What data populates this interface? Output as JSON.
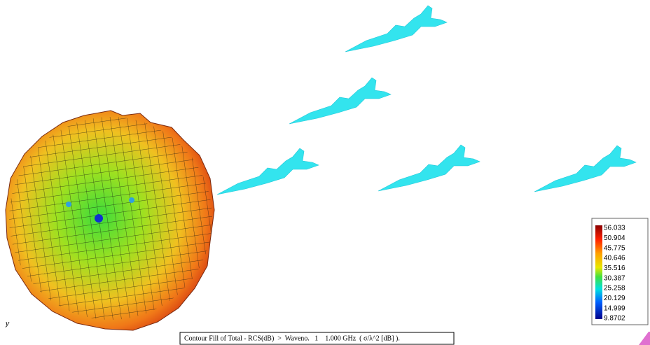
{
  "legend": {
    "labels": [
      "56.033",
      "50.904",
      "45.775",
      "40.646",
      "35.516",
      "30.387",
      "25.258",
      "20.129",
      "14.999",
      "9.8702"
    ]
  },
  "caption": "Contour Fill of Total - RCS(dB)  >  Waveno.   1    1.000 GHz  ( σ/λ^2 [dB] ).",
  "axis_label": "y"
}
